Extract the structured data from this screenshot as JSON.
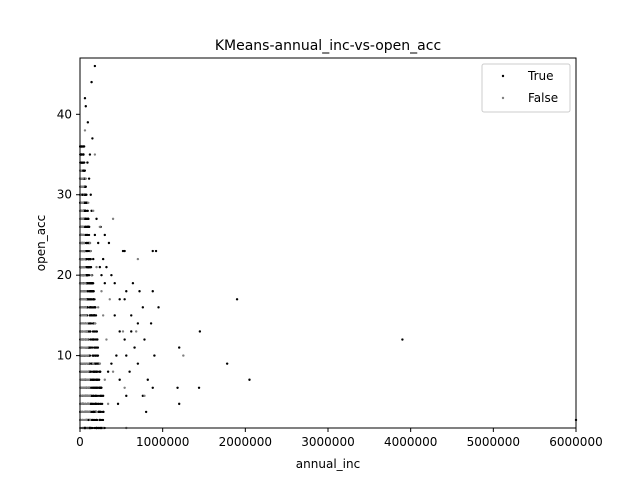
{
  "chart_data": {
    "type": "scatter",
    "title": "KMeans-annual_inc-vs-open_acc",
    "xlabel": "annual_inc",
    "ylabel": "open_acc",
    "xlim": [
      0,
      6000000
    ],
    "ylim": [
      1,
      47
    ],
    "xticks": [
      0,
      1000000,
      2000000,
      3000000,
      4000000,
      5000000,
      6000000
    ],
    "xtick_labels": [
      "0",
      "1000000",
      "2000000",
      "3000000",
      "4000000",
      "5000000",
      "6000000"
    ],
    "yticks": [
      10,
      20,
      30,
      40
    ],
    "ytick_labels": [
      "10",
      "20",
      "30",
      "40"
    ],
    "grid": false,
    "legend_position": "top-right",
    "series": [
      {
        "name": "True",
        "color": "#000000",
        "points": [
          [
            180000,
            46
          ],
          [
            140000,
            44
          ],
          [
            60000,
            42
          ],
          [
            70000,
            41
          ],
          [
            95000,
            39
          ],
          [
            150000,
            37
          ],
          [
            50000,
            36
          ],
          [
            120000,
            35
          ],
          [
            90000,
            34
          ],
          [
            40000,
            33
          ],
          [
            110000,
            32
          ],
          [
            60000,
            31
          ],
          [
            30000,
            30
          ],
          [
            130000,
            30
          ],
          [
            80000,
            29
          ],
          [
            140000,
            28
          ],
          [
            200000,
            27
          ],
          [
            250000,
            26
          ],
          [
            300000,
            25
          ],
          [
            180000,
            25
          ],
          [
            220000,
            24
          ],
          [
            350000,
            24
          ],
          [
            520000,
            23
          ],
          [
            540000,
            23
          ],
          [
            880000,
            23
          ],
          [
            920000,
            23
          ],
          [
            280000,
            22
          ],
          [
            160000,
            22
          ],
          [
            320000,
            21
          ],
          [
            240000,
            21
          ],
          [
            380000,
            20
          ],
          [
            260000,
            20
          ],
          [
            420000,
            19
          ],
          [
            300000,
            19
          ],
          [
            640000,
            19
          ],
          [
            560000,
            18
          ],
          [
            720000,
            18
          ],
          [
            880000,
            18
          ],
          [
            480000,
            17
          ],
          [
            540000,
            17
          ],
          [
            1900000,
            17
          ],
          [
            760000,
            16
          ],
          [
            950000,
            16
          ],
          [
            620000,
            15
          ],
          [
            420000,
            15
          ],
          [
            860000,
            14
          ],
          [
            700000,
            14
          ],
          [
            480000,
            13
          ],
          [
            620000,
            13
          ],
          [
            1450000,
            13
          ],
          [
            780000,
            12
          ],
          [
            3900000,
            12
          ],
          [
            540000,
            12
          ],
          [
            1200000,
            11
          ],
          [
            660000,
            11
          ],
          [
            440000,
            10
          ],
          [
            900000,
            10
          ],
          [
            560000,
            10
          ],
          [
            1780000,
            9
          ],
          [
            700000,
            9
          ],
          [
            380000,
            9
          ],
          [
            340000,
            8
          ],
          [
            600000,
            8
          ],
          [
            2050000,
            7
          ],
          [
            480000,
            7
          ],
          [
            820000,
            7
          ],
          [
            1180000,
            6
          ],
          [
            1440000,
            6
          ],
          [
            880000,
            6
          ],
          [
            280000,
            5
          ],
          [
            560000,
            5
          ],
          [
            760000,
            5
          ],
          [
            1200000,
            4
          ],
          [
            460000,
            4
          ],
          [
            800000,
            3
          ],
          [
            160000,
            3
          ],
          [
            240000,
            2
          ],
          [
            6000000,
            2
          ],
          [
            100000,
            2
          ],
          [
            120000,
            1
          ],
          [
            60000,
            1
          ],
          [
            200000,
            1
          ]
        ]
      },
      {
        "name": "False",
        "color": "#808080",
        "points": [
          [
            60000,
            38
          ],
          [
            180000,
            35
          ],
          [
            70000,
            32
          ],
          [
            40000,
            31
          ],
          [
            100000,
            29
          ],
          [
            160000,
            28
          ],
          [
            400000,
            27
          ],
          [
            240000,
            26
          ],
          [
            120000,
            24
          ],
          [
            700000,
            22
          ],
          [
            200000,
            21
          ],
          [
            140000,
            20
          ],
          [
            260000,
            18
          ],
          [
            360000,
            17
          ],
          [
            220000,
            16
          ],
          [
            280000,
            15
          ],
          [
            180000,
            14
          ],
          [
            520000,
            13
          ],
          [
            680000,
            13
          ],
          [
            320000,
            12
          ],
          [
            1250000,
            10
          ],
          [
            240000,
            9
          ],
          [
            400000,
            8
          ],
          [
            300000,
            7
          ],
          [
            540000,
            6
          ],
          [
            780000,
            5
          ],
          [
            340000,
            4
          ],
          [
            200000,
            3
          ],
          [
            560000,
            1
          ],
          [
            280000,
            1
          ],
          [
            80000,
            2
          ],
          [
            120000,
            5
          ],
          [
            160000,
            9
          ],
          [
            90000,
            11
          ],
          [
            60000,
            19
          ],
          [
            130000,
            23
          ]
        ]
      }
    ],
    "dense_band": {
      "description_series": "True",
      "x_min": 0,
      "x_max": 300000,
      "y_min": 1,
      "y_max": 36
    },
    "dense_band_false": {
      "x_min": 0,
      "x_max": 130000,
      "y_min": 1,
      "y_max": 33
    }
  }
}
